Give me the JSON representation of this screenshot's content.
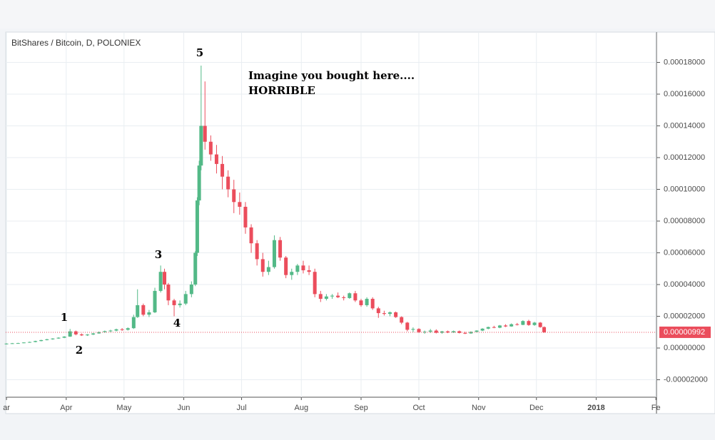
{
  "chart_data": {
    "type": "candlestick",
    "title": "BitShares / Bitcoin, D, POLONIEX",
    "annotations": [
      "1",
      "2",
      "3",
      "4",
      "5",
      "Imagine you bought here....",
      "HORRIBLE"
    ],
    "up_color": "#53b987",
    "down_color": "#eb4d5c",
    "x": [
      59,
      62,
      65,
      68,
      71,
      74,
      77,
      80,
      83,
      86,
      89,
      92,
      95,
      98,
      101,
      104,
      107,
      110,
      113,
      116,
      119,
      122,
      125,
      127,
      130,
      133,
      136,
      139,
      141,
      143,
      146,
      149,
      152,
      155,
      157,
      158,
      159,
      160,
      162,
      165,
      168,
      171,
      174,
      177,
      180,
      183,
      186,
      189,
      192,
      195,
      198,
      201,
      204,
      207,
      210,
      213,
      216,
      219,
      222,
      225,
      228,
      231,
      234,
      237,
      240,
      243,
      246,
      249,
      252,
      255,
      258,
      261,
      264,
      267,
      270,
      273,
      276,
      279,
      282,
      285,
      288,
      291,
      294,
      297,
      300,
      303,
      306,
      309,
      312,
      315,
      318,
      321,
      324,
      327,
      330,
      333,
      336,
      338
    ],
    "open": [
      2.5e-06,
      2.8e-06,
      3e-06,
      3.1e-06,
      3.5e-06,
      3.8e-06,
      4.4e-06,
      5e-06,
      5.5e-06,
      6e-06,
      6.5e-06,
      7.2e-06,
      1.05e-05,
      8.6e-06,
      8e-06,
      8.5e-06,
      9.2e-06,
      1e-05,
      1.06e-05,
      1.1e-05,
      1.18e-05,
      1.15e-05,
      1.25e-05,
      1.95e-05,
      2.7e-05,
      2.1e-05,
      2.25e-05,
      3.6e-05,
      4.8e-05,
      4e-05,
      3e-05,
      2.7e-05,
      2.8e-05,
      3.4e-05,
      4e-05,
      6e-05,
      9.3e-05,
      0.000115,
      0.00014,
      0.00013,
      0.000122,
      0.000116,
      0.000108,
      0.0001,
      9.2e-05,
      8.9e-05,
      7.6e-05,
      6.6e-05,
      5.6e-05,
      4.8e-05,
      5.1e-05,
      6.8e-05,
      5.7e-05,
      4.6e-05,
      4.8e-05,
      5.2e-05,
      4.9e-05,
      4.8e-05,
      3.4e-05,
      3.1e-05,
      3.25e-05,
      3.3e-05,
      3.2e-05,
      3.15e-05,
      3.45e-05,
      3e-05,
      2.7e-05,
      3.1e-05,
      2.5e-05,
      2.2e-05,
      2.15e-05,
      2.25e-05,
      1.95e-05,
      1.6e-05,
      1.15e-05,
      1.2e-05,
      1e-05,
      1.03e-05,
      1.1e-05,
      9.6e-06,
      1.05e-05,
      9.8e-06,
      1.06e-05,
      9.5e-06,
      9.2e-06,
      1.02e-05,
      1.1e-05,
      1.22e-05,
      1.32e-05,
      1.28e-05,
      1.42e-05,
      1.36e-05,
      1.5e-05,
      1.46e-05,
      1.7e-05,
      1.45e-05,
      1.6e-05,
      1.32e-05
    ],
    "high": [
      3e-06,
      3.2e-06,
      3.3e-06,
      3.6e-06,
      4e-06,
      4.6e-06,
      5.2e-06,
      5.8e-06,
      6.2e-06,
      6.8e-06,
      7.5e-06,
      1.2e-05,
      1.1e-05,
      9.2e-06,
      8.8e-06,
      9.5e-06,
      1.04e-05,
      1.1e-05,
      1.15e-05,
      1.22e-05,
      1.26e-05,
      1.3e-05,
      2.1e-05,
      3.7e-05,
      2.8e-05,
      2.4e-05,
      3.8e-05,
      5.2e-05,
      5e-05,
      4.1e-05,
      3.1e-05,
      3e-05,
      3.6e-05,
      4.2e-05,
      6.1e-05,
      9.5e-05,
      0.000118,
      0.000178,
      0.000168,
      0.000134,
      0.000128,
      0.000121,
      0.000112,
      0.000106,
      9.8e-05,
      9.2e-05,
      7.8e-05,
      6.8e-05,
      6e-05,
      5.5e-05,
      7.1e-05,
      7e-05,
      5.8e-05,
      5e-05,
      5.3e-05,
      5.5e-05,
      5.2e-05,
      5e-05,
      3.6e-05,
      3.4e-05,
      3.4e-05,
      3.5e-05,
      3.3e-05,
      3.5e-05,
      3.6e-05,
      3.1e-05,
      3.2e-05,
      3.2e-05,
      2.6e-05,
      2.35e-05,
      2.3e-05,
      2.3e-05,
      2e-05,
      1.65e-05,
      1.3e-05,
      1.25e-05,
      1.1e-05,
      1.2e-05,
      1.18e-05,
      1.08e-05,
      1.1e-05,
      1.1e-05,
      1.1e-05,
      1.02e-05,
      1.05e-05,
      1.12e-05,
      1.25e-05,
      1.35e-05,
      1.4e-05,
      1.45e-05,
      1.5e-05,
      1.55e-05,
      1.58e-05,
      1.75e-05,
      1.78e-05,
      1.65e-05,
      1.64e-05,
      1.36e-05
    ],
    "low": [
      2.2e-06,
      2.6e-06,
      2.8e-06,
      3e-06,
      3.3e-06,
      3.6e-06,
      4.2e-06,
      4.8e-06,
      5.2e-06,
      5.8e-06,
      6.2e-06,
      7e-06,
      8e-06,
      7.6e-06,
      7.6e-06,
      8.2e-06,
      9e-06,
      9.6e-06,
      1e-05,
      1.05e-05,
      1.08e-05,
      1.1e-05,
      1.2e-05,
      1.9e-05,
      2e-05,
      1.95e-05,
      2.2e-05,
      3.5e-05,
      3.7e-05,
      2.7e-05,
      2e-05,
      2.55e-05,
      2.7e-05,
      3.2e-05,
      3.9e-05,
      5.8e-05,
      9e-05,
      0.000112,
      0.000125,
      0.000118,
      0.00011,
      0.0001,
      9.5e-05,
      8.5e-05,
      8.4e-05,
      7.2e-05,
      6e-05,
      5.2e-05,
      4.5e-05,
      4.6e-05,
      5e-05,
      5.5e-05,
      4.4e-05,
      4.3e-05,
      4.6e-05,
      4.7e-05,
      4.6e-05,
      3.2e-05,
      2.9e-05,
      3e-05,
      3.1e-05,
      3.15e-05,
      3e-05,
      3.1e-05,
      2.9e-05,
      2.6e-05,
      2.6e-05,
      2.4e-05,
      1.9e-05,
      2.05e-05,
      2e-05,
      1.9e-05,
      1.5e-05,
      1.05e-05,
      1e-05,
      9.5e-06,
      9e-06,
      9.5e-06,
      9.2e-06,
      9e-06,
      9.4e-06,
      9.5e-06,
      9.2e-06,
      8.8e-06,
      9e-06,
      9.8e-06,
      1.06e-05,
      1.18e-05,
      1.25e-05,
      1.25e-05,
      1.32e-05,
      1.34e-05,
      1.42e-05,
      1.44e-05,
      1.4e-05,
      1.4e-05,
      1.28e-05,
      9.6e-06
    ],
    "close": [
      2.8e-06,
      3e-06,
      3.1e-06,
      3.5e-06,
      3.8e-06,
      4.4e-06,
      5e-06,
      5.5e-06,
      6e-06,
      6.5e-06,
      7.2e-06,
      1.05e-05,
      8.6e-06,
      8e-06,
      8.5e-06,
      9.2e-06,
      1e-05,
      1.06e-05,
      1.1e-05,
      1.18e-05,
      1.15e-05,
      1.25e-05,
      1.95e-05,
      2.7e-05,
      2.1e-05,
      2.25e-05,
      3.6e-05,
      4.8e-05,
      4e-05,
      3e-05,
      2.7e-05,
      2.8e-05,
      3.4e-05,
      4e-05,
      6e-05,
      9.3e-05,
      0.000115,
      0.00014,
      0.00013,
      0.000122,
      0.000116,
      0.000108,
      0.0001,
      9.2e-05,
      8.9e-05,
      7.6e-05,
      6.6e-05,
      5.6e-05,
      4.8e-05,
      5.1e-05,
      6.8e-05,
      5.7e-05,
      4.6e-05,
      4.8e-05,
      5.2e-05,
      4.9e-05,
      4.8e-05,
      3.4e-05,
      3.1e-05,
      3.25e-05,
      3.3e-05,
      3.2e-05,
      3.15e-05,
      3.45e-05,
      3e-05,
      2.7e-05,
      3.1e-05,
      2.5e-05,
      2.2e-05,
      2.15e-05,
      2.25e-05,
      1.95e-05,
      1.6e-05,
      1.15e-05,
      1.2e-05,
      1e-05,
      1.03e-05,
      1.1e-05,
      9.6e-06,
      1.05e-05,
      9.8e-06,
      1.06e-05,
      9.5e-06,
      9.2e-06,
      1.02e-05,
      1.1e-05,
      1.22e-05,
      1.32e-05,
      1.28e-05,
      1.42e-05,
      1.36e-05,
      1.5e-05,
      1.46e-05,
      1.7e-05,
      1.45e-05,
      1.6e-05,
      1.32e-05,
      9.92e-06
    ],
    "last_price": {
      "value": 9.92e-06,
      "label": "0.00000992"
    },
    "xlim": [
      58.6,
      396.3
    ],
    "xticks": [
      {
        "value": 59,
        "label": "ar"
      },
      {
        "value": 90,
        "label": "Apr"
      },
      {
        "value": 120,
        "label": "May"
      },
      {
        "value": 151,
        "label": "Jun"
      },
      {
        "value": 181,
        "label": "Jul"
      },
      {
        "value": 212,
        "label": "Aug"
      },
      {
        "value": 243,
        "label": "Sep"
      },
      {
        "value": 273,
        "label": "Oct"
      },
      {
        "value": 304,
        "label": "Nov"
      },
      {
        "value": 334,
        "label": "Dec"
      },
      {
        "value": 365,
        "label": "2018"
      },
      {
        "value": 396,
        "label": "Fe"
      }
    ],
    "ylim": [
      -3.1e-05,
      0.0001991
    ],
    "yticks": [
      {
        "value": -2e-05,
        "label": "-0.00002000"
      },
      {
        "value": 0,
        "label": "0.00000000"
      },
      {
        "value": 2e-05,
        "label": "0.00002000"
      },
      {
        "value": 4e-05,
        "label": "0.00004000"
      },
      {
        "value": 6e-05,
        "label": "0.00006000"
      },
      {
        "value": 8e-05,
        "label": "0.00008000"
      },
      {
        "value": 0.0001,
        "label": "0.00010000"
      },
      {
        "value": 0.00012,
        "label": "0.00012000"
      },
      {
        "value": 0.00014,
        "label": "0.00014000"
      },
      {
        "value": 0.00016,
        "label": "0.00016000"
      },
      {
        "value": 0.00018,
        "label": "0.00018000"
      }
    ],
    "grid": true
  }
}
